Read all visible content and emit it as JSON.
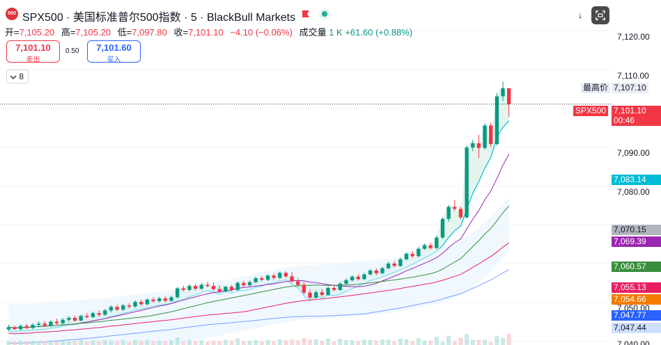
{
  "header": {
    "badge": "500",
    "title": "SPX500 · 美国标准普尔500指数 · 5 · BlackBull Markets",
    "flag_icon": "flag-icon",
    "live_icon": "market-open-icon",
    "arrow": "↓",
    "clip_icon": "screenshot-icon"
  },
  "ohlc": {
    "open_label": "开=",
    "open": "7,105.20",
    "high_label": "高=",
    "high": "7,105.20",
    "low_label": "低=",
    "low": "7,097.80",
    "close_label": "收=",
    "close": "7,101.10",
    "change": "−4.10 (−0.06%)",
    "volume_label": "成交量",
    "volume": "1 K",
    "volume_change": "+61.60 (+0.88%)"
  },
  "trade": {
    "sell_price": "7,101.10",
    "sell_label": "卖出",
    "spread": "0.50",
    "buy_price": "7,101.60",
    "buy_label": "买入"
  },
  "indicators": {
    "toggle_icon": "chevron-down-icon",
    "count": "8"
  },
  "axis": {
    "ticks": [
      "7,120.00",
      "7,110.00",
      "7,090.00",
      "7,080.00",
      "7,050.00",
      "7,040.00"
    ],
    "high_label": "最高价",
    "high_value": "7,107.10",
    "symbol_tag": "SPX500",
    "last_price": "7,101.10",
    "countdown": "00:46",
    "levels": [
      "7,083.14",
      "7,070.15",
      "7,069.39",
      "7,060.57",
      "7,055.13",
      "7,054.66",
      "7,047.77",
      "7,047.44"
    ]
  },
  "colors": {
    "up": "#089981",
    "down": "#f23645",
    "cyan": "#00bcd4",
    "purple": "#9c27b0",
    "green": "#388e3c",
    "red": "#e91e63",
    "orange": "#f57c00",
    "blue": "#2962ff"
  },
  "chart_data": {
    "type": "candlestick",
    "ylim": [
      7039,
      7124
    ],
    "price_line": 7101.1,
    "candles": [
      [
        7043.0,
        7044.2,
        7042.5,
        7043.6
      ],
      [
        7043.6,
        7044.0,
        7042.8,
        7043.1
      ],
      [
        7043.1,
        7044.3,
        7042.7,
        7043.9
      ],
      [
        7043.9,
        7044.5,
        7043.0,
        7043.4
      ],
      [
        7043.4,
        7044.6,
        7043.1,
        7044.2
      ],
      [
        7044.2,
        7045.0,
        7043.6,
        7044.5
      ],
      [
        7044.5,
        7045.2,
        7043.8,
        7044.0
      ],
      [
        7044.0,
        7045.3,
        7043.7,
        7045.0
      ],
      [
        7045.0,
        7045.8,
        7044.2,
        7044.6
      ],
      [
        7044.6,
        7045.9,
        7044.1,
        7045.5
      ],
      [
        7045.5,
        7046.4,
        7044.9,
        7046.0
      ],
      [
        7046.0,
        7046.6,
        7045.0,
        7045.3
      ],
      [
        7045.3,
        7046.8,
        7045.0,
        7046.5
      ],
      [
        7046.5,
        7047.3,
        7045.8,
        7046.2
      ],
      [
        7046.2,
        7047.6,
        7045.9,
        7047.2
      ],
      [
        7047.2,
        7048.0,
        7046.3,
        7046.8
      ],
      [
        7046.8,
        7048.3,
        7046.5,
        7047.9
      ],
      [
        7047.9,
        7049.2,
        7047.4,
        7048.8
      ],
      [
        7048.8,
        7049.4,
        7047.8,
        7048.1
      ],
      [
        7048.1,
        7049.6,
        7047.8,
        7049.2
      ],
      [
        7049.2,
        7049.8,
        7048.4,
        7048.9
      ],
      [
        7048.9,
        7050.5,
        7048.6,
        7050.1
      ],
      [
        7050.1,
        7050.7,
        7049.1,
        7049.5
      ],
      [
        7049.5,
        7051.0,
        7049.2,
        7050.7
      ],
      [
        7050.7,
        7051.3,
        7049.9,
        7050.3
      ],
      [
        7050.3,
        7051.4,
        7049.9,
        7051.0
      ],
      [
        7051.0,
        7051.6,
        7050.0,
        7050.4
      ],
      [
        7050.4,
        7051.7,
        7050.1,
        7051.3
      ],
      [
        7051.3,
        7053.9,
        7051.0,
        7053.6
      ],
      [
        7053.6,
        7054.3,
        7052.8,
        7053.2
      ],
      [
        7053.2,
        7054.6,
        7052.9,
        7054.2
      ],
      [
        7054.2,
        7054.8,
        7053.1,
        7053.5
      ],
      [
        7053.5,
        7054.9,
        7053.2,
        7054.5
      ],
      [
        7054.5,
        7055.3,
        7053.9,
        7054.2
      ],
      [
        7054.2,
        7055.2,
        7053.0,
        7053.4
      ],
      [
        7053.4,
        7054.4,
        7052.5,
        7052.8
      ],
      [
        7052.8,
        7054.3,
        7052.5,
        7054.0
      ],
      [
        7054.0,
        7054.5,
        7052.8,
        7053.2
      ],
      [
        7053.2,
        7055.4,
        7052.9,
        7055.0
      ],
      [
        7055.0,
        7055.6,
        7054.0,
        7054.4
      ],
      [
        7054.4,
        7055.6,
        7054.1,
        7055.2
      ],
      [
        7055.2,
        7056.6,
        7054.9,
        7056.2
      ],
      [
        7056.2,
        7056.8,
        7055.4,
        7055.8
      ],
      [
        7055.8,
        7057.2,
        7055.5,
        7056.9
      ],
      [
        7056.9,
        7057.5,
        7055.8,
        7056.3
      ],
      [
        7056.3,
        7057.9,
        7056.0,
        7057.6
      ],
      [
        7057.6,
        7058.0,
        7056.3,
        7056.7
      ],
      [
        7056.7,
        7057.8,
        7055.0,
        7055.4
      ],
      [
        7055.4,
        7056.1,
        7054.0,
        7054.5
      ],
      [
        7054.5,
        7055.2,
        7052.0,
        7052.5
      ],
      [
        7052.5,
        7053.4,
        7050.7,
        7051.2
      ],
      [
        7051.2,
        7053.1,
        7050.9,
        7052.6
      ],
      [
        7052.6,
        7053.4,
        7051.5,
        7051.9
      ],
      [
        7051.9,
        7054.1,
        7051.6,
        7053.7
      ],
      [
        7053.7,
        7054.5,
        7052.8,
        7053.2
      ],
      [
        7053.2,
        7055.2,
        7052.9,
        7054.8
      ],
      [
        7054.8,
        7056.1,
        7054.5,
        7055.7
      ],
      [
        7055.7,
        7057.0,
        7055.4,
        7056.6
      ],
      [
        7056.6,
        7057.2,
        7055.6,
        7056.0
      ],
      [
        7056.0,
        7057.6,
        7055.7,
        7057.2
      ],
      [
        7057.2,
        7058.6,
        7056.9,
        7058.2
      ],
      [
        7058.2,
        7058.8,
        7057.0,
        7057.5
      ],
      [
        7057.5,
        7059.2,
        7057.2,
        7058.8
      ],
      [
        7058.8,
        7060.4,
        7058.5,
        7060.0
      ],
      [
        7060.0,
        7060.7,
        7059.0,
        7059.4
      ],
      [
        7059.4,
        7061.5,
        7059.1,
        7061.1
      ],
      [
        7061.1,
        7062.9,
        7060.8,
        7062.5
      ],
      [
        7062.5,
        7063.2,
        7061.4,
        7061.9
      ],
      [
        7061.9,
        7064.2,
        7061.6,
        7063.8
      ],
      [
        7063.8,
        7065.1,
        7063.5,
        7064.7
      ],
      [
        7064.7,
        7065.4,
        7063.6,
        7064.0
      ],
      [
        7064.0,
        7067.1,
        7063.7,
        7066.7
      ],
      [
        7066.7,
        7071.9,
        7066.4,
        7071.5
      ],
      [
        7071.5,
        7075.1,
        7070.8,
        7074.6
      ],
      [
        7074.6,
        7076.4,
        7073.6,
        7074.1
      ],
      [
        7074.1,
        7074.7,
        7071.4,
        7071.9
      ],
      [
        7071.9,
        7090.4,
        7071.6,
        7089.9
      ],
      [
        7089.9,
        7091.9,
        7089.0,
        7091.0
      ],
      [
        7091.0,
        7093.2,
        7087.2,
        7089.8
      ],
      [
        7089.8,
        7096.1,
        7089.4,
        7095.6
      ],
      [
        7095.6,
        7096.3,
        7090.0,
        7090.8
      ],
      [
        7090.8,
        7103.9,
        7090.4,
        7103.1
      ],
      [
        7103.1,
        7106.9,
        7101.9,
        7105.2
      ],
      [
        7105.2,
        7105.2,
        7097.8,
        7101.1
      ]
    ]
  }
}
